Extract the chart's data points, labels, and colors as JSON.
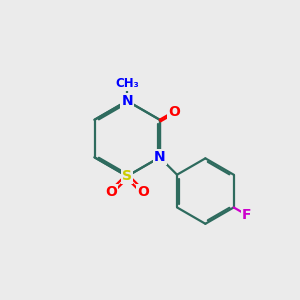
{
  "bg_color": "#ebebeb",
  "bond_color": "#2e6b5e",
  "bond_width": 1.6,
  "atom_colors": {
    "N": "#0000ff",
    "O": "#ff0000",
    "S": "#cccc00",
    "F": "#cc00cc",
    "C": "#2e6b5e"
  },
  "font_size_atom": 10,
  "font_size_methyl": 8.5,
  "xlim": [
    0.5,
    9.5
  ],
  "ylim": [
    1.0,
    9.0
  ]
}
